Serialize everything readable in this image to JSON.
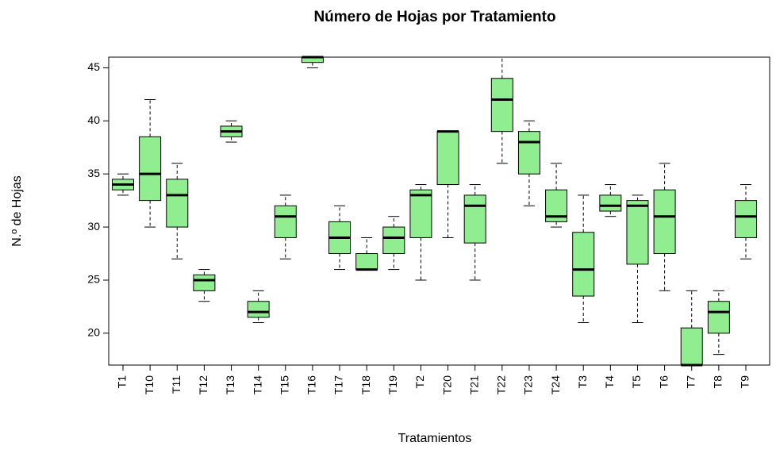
{
  "chart_data": {
    "type": "boxplot",
    "title": "Número de Hojas por Tratamiento",
    "x_label": "Tratamientos",
    "y_label": "N.º de Hojas",
    "categories": [
      "T1",
      "T10",
      "T11",
      "T12",
      "T13",
      "T14",
      "T15",
      "T16",
      "T17",
      "T18",
      "T19",
      "T2",
      "T20",
      "T21",
      "T22",
      "T23",
      "T24",
      "T3",
      "T4",
      "T5",
      "T6",
      "T7",
      "T8",
      "T9"
    ],
    "min": [
      33,
      30,
      27,
      23,
      38,
      21,
      27,
      45,
      26,
      26,
      26,
      25,
      29,
      25,
      36,
      32,
      30,
      21,
      31,
      21,
      24,
      17,
      18,
      27
    ],
    "q1": [
      33.5,
      32.5,
      30,
      24,
      38.5,
      21.5,
      29,
      45.5,
      27.5,
      26,
      27.5,
      29,
      34,
      28.5,
      39,
      35,
      30.5,
      23.5,
      31.5,
      26.5,
      27.5,
      17,
      20,
      29
    ],
    "median": [
      34,
      35,
      33,
      25,
      39,
      22,
      31,
      46,
      29,
      26,
      29,
      33,
      39,
      32,
      42,
      38,
      31,
      26,
      32,
      32,
      31,
      17,
      22,
      31
    ],
    "q3": [
      34.5,
      38.5,
      34.5,
      25.5,
      39.5,
      23,
      32,
      46,
      30.5,
      27.5,
      30,
      33.5,
      39,
      33,
      44,
      39,
      33.5,
      29.5,
      33,
      32.5,
      33.5,
      20.5,
      23,
      32.5
    ],
    "max": [
      35,
      42,
      36,
      26,
      40,
      24,
      33,
      46,
      32,
      29,
      31,
      34,
      39,
      34,
      46,
      40,
      36,
      33,
      34,
      33,
      36,
      24,
      24,
      34
    ],
    "color": "#90ee90",
    "ylim": [
      17,
      46
    ],
    "yticks": [
      20,
      25,
      30,
      35,
      40,
      45
    ]
  }
}
